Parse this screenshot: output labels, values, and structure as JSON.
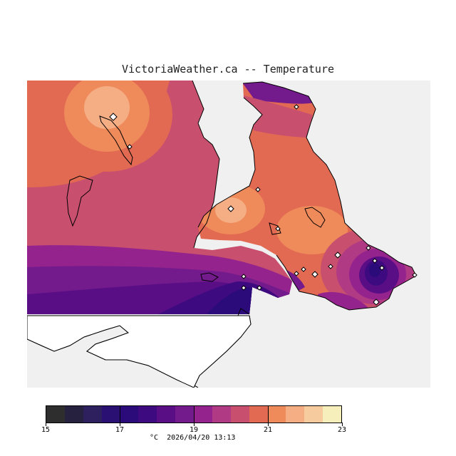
{
  "title": "VictoriaWeather.ca -- Temperature",
  "map": {
    "variable": "Temperature",
    "colors": {
      "background": "#ffffff",
      "no_data": "#f0f0f0",
      "coastline": "#000000",
      "station_marker": "#ffffff"
    },
    "station_icon": "diamond-marker-icon"
  },
  "legend": {
    "min": 15,
    "max": 23,
    "tick_values": [
      "15",
      "17",
      "19",
      "21",
      "23"
    ],
    "colors": [
      "#2e2e2e",
      "#272140",
      "#2e1f5e",
      "#2a1072",
      "#2b0b7a",
      "#3e0a80",
      "#5a0e85",
      "#731a8c",
      "#95238d",
      "#b03a83",
      "#c8506e",
      "#e26a52",
      "#ef8a5a",
      "#f5ad84",
      "#f6cc9e",
      "#f6eebb"
    ],
    "units": "°C",
    "timestamp": "2026/04/20 13:13"
  }
}
